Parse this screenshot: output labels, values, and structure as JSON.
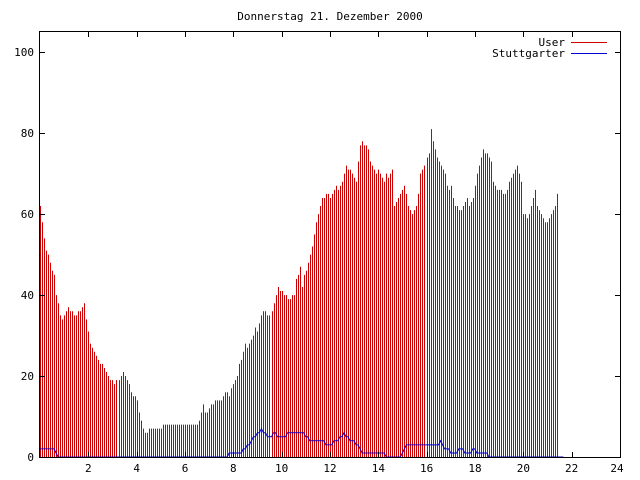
{
  "chart_data": {
    "type": "bar",
    "title": "Donnerstag 21. Dezember 2000",
    "xlabel": "",
    "ylabel": "",
    "xlim": [
      0,
      24
    ],
    "ylim": [
      0,
      105
    ],
    "x_ticks": [
      2,
      4,
      6,
      8,
      10,
      12,
      14,
      16,
      18,
      20,
      22,
      24
    ],
    "y_ticks": [
      0,
      20,
      40,
      60,
      80,
      100
    ],
    "grid": false,
    "legend_position": "top-right",
    "sample_interval_hours": 0.0833,
    "series": [
      {
        "name": "User",
        "type": "impulses",
        "color": "#cc0000",
        "values": [
          62,
          58,
          54,
          51,
          50,
          48,
          46,
          45,
          40,
          38,
          35,
          34,
          35,
          36,
          37,
          36,
          36,
          35,
          35,
          36,
          36,
          37,
          38,
          34,
          31,
          28,
          27,
          26,
          25,
          24,
          23,
          23,
          22,
          21,
          20,
          19,
          19,
          18,
          19,
          19,
          20,
          21,
          20,
          19,
          18,
          16,
          15,
          15,
          14,
          11,
          9,
          7,
          6,
          6,
          7,
          7,
          7,
          7,
          7,
          7,
          7,
          8,
          8,
          8,
          8,
          8,
          8,
          8,
          8,
          8,
          8,
          8,
          8,
          8,
          8,
          8,
          8,
          8,
          8,
          9,
          11,
          13,
          11,
          11,
          12,
          13,
          13,
          14,
          14,
          14,
          14,
          15,
          16,
          16,
          15,
          17,
          18,
          19,
          20,
          23,
          24,
          26,
          28,
          27,
          28,
          29,
          30,
          32,
          31,
          33,
          35,
          36,
          36,
          35,
          35,
          36,
          38,
          40,
          42,
          41,
          41,
          40,
          40,
          39,
          39,
          40,
          40,
          44,
          45,
          47,
          42,
          45,
          46,
          48,
          50,
          52,
          55,
          58,
          60,
          62,
          64,
          64,
          65,
          65,
          64,
          65,
          66,
          67,
          66,
          67,
          68,
          70,
          72,
          71,
          71,
          70,
          69,
          68,
          73,
          77,
          78,
          77,
          77,
          76,
          73,
          72,
          71,
          70,
          71,
          70,
          69,
          68,
          70,
          69,
          70,
          71,
          62,
          63,
          64,
          65,
          66,
          67,
          65,
          62,
          61,
          60,
          61,
          62,
          65,
          70,
          71,
          72,
          74,
          75,
          81,
          78,
          76,
          74,
          73,
          72,
          71,
          70,
          67,
          66,
          67,
          64,
          62,
          62,
          61,
          61,
          62,
          63,
          64,
          62,
          63,
          64,
          67,
          70,
          72,
          74,
          76,
          75,
          75,
          74,
          73,
          68,
          67,
          66,
          66,
          66,
          65,
          65,
          66,
          68,
          69,
          70,
          71,
          72,
          70,
          68,
          60,
          60,
          59,
          60,
          62,
          64,
          66,
          62,
          61,
          60,
          59,
          58,
          58,
          59,
          60,
          61,
          62,
          65
        ]
      },
      {
        "name": "Stuttgarter",
        "type": "line",
        "color": "#0000cc",
        "values": [
          2,
          2,
          2,
          2,
          2,
          2,
          2,
          2,
          1,
          0,
          0,
          0,
          0,
          0,
          0,
          0,
          0,
          0,
          0,
          0,
          0,
          0,
          0,
          0,
          0,
          0,
          0,
          0,
          0,
          0,
          0,
          0,
          0,
          0,
          0,
          0,
          0,
          0,
          0,
          0,
          0,
          0,
          0,
          0,
          0,
          0,
          0,
          0,
          0,
          0,
          0,
          0,
          0,
          0,
          0,
          0,
          0,
          0,
          0,
          0,
          0,
          0,
          0,
          0,
          0,
          0,
          0,
          0,
          0,
          0,
          0,
          0,
          0,
          0,
          0,
          0,
          0,
          0,
          0,
          0,
          0,
          0,
          0,
          0,
          0,
          0,
          0,
          0,
          0,
          0,
          0,
          0,
          0,
          0,
          1,
          1,
          1,
          1,
          1,
          1,
          1,
          2,
          2,
          3,
          3,
          4,
          5,
          5,
          6,
          6,
          7,
          6,
          6,
          5,
          5,
          5,
          6,
          6,
          5,
          5,
          5,
          5,
          5,
          6,
          6,
          6,
          6,
          6,
          6,
          6,
          6,
          6,
          5,
          5,
          4,
          4,
          4,
          4,
          4,
          4,
          4,
          4,
          3,
          3,
          3,
          3,
          4,
          4,
          4,
          5,
          5,
          6,
          5,
          5,
          4,
          4,
          4,
          3,
          3,
          2,
          1,
          1,
          1,
          1,
          1,
          1,
          1,
          1,
          1,
          1,
          1,
          1,
          0,
          0,
          0,
          0,
          0,
          0,
          0,
          0,
          1,
          2,
          3,
          3,
          3,
          3,
          3,
          3,
          3,
          3,
          3,
          3,
          3,
          3,
          3,
          3,
          3,
          3,
          3,
          4,
          3,
          2,
          2,
          2,
          1,
          1,
          1,
          1,
          2,
          2,
          2,
          1,
          1,
          1,
          1,
          2,
          2,
          1,
          1,
          1,
          1,
          1,
          1,
          0,
          0,
          0,
          0,
          0,
          0,
          0,
          0,
          0,
          0,
          0,
          0,
          0,
          0,
          0,
          0,
          0,
          0,
          0,
          0,
          0,
          0,
          0,
          0,
          0,
          0,
          0,
          0,
          0,
          0,
          0,
          0,
          0,
          0,
          0,
          0,
          0,
          0
        ]
      }
    ]
  }
}
